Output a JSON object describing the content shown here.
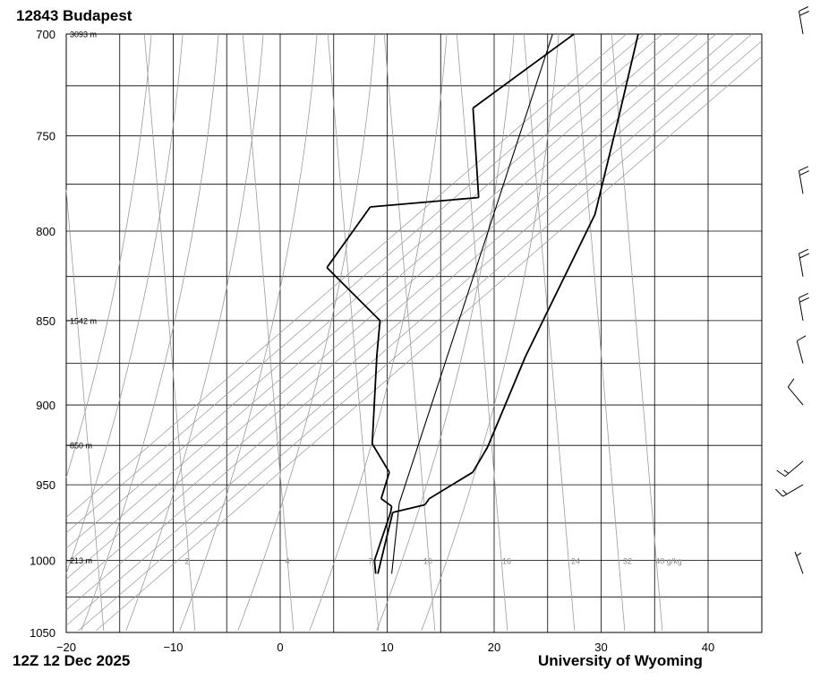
{
  "header": {
    "station_title": "12843  Budapest"
  },
  "footer": {
    "left_text": "12Z 12 Dec 2025",
    "right_text": "University of Wyoming"
  },
  "chart_data": {
    "type": "line",
    "title": "12843  Budapest",
    "subtitle": "12Z 12 Dec 2025",
    "credit": "University of Wyoming",
    "xlabel": "",
    "ylabel": "",
    "x_ticks": [
      -20,
      -10,
      0,
      10,
      20,
      30,
      40
    ],
    "y_ticks": [
      700,
      750,
      800,
      850,
      900,
      950,
      1000,
      1050
    ],
    "xlim": [
      -20,
      45
    ],
    "ylim": [
      1050,
      700
    ],
    "y_scale": "log-pressure",
    "grid": true,
    "height_labels": [
      {
        "p": 700,
        "label": "3093 m"
      },
      {
        "p": 850,
        "label": "1542 m"
      },
      {
        "p": 925,
        "label": "850 m"
      },
      {
        "p": 1000,
        "label": "213 m"
      }
    ],
    "mixing_ratio_labels": [
      "2",
      "4",
      "7",
      "10",
      "16",
      "24",
      "32",
      "40 g/kg"
    ],
    "series": [
      {
        "role": "temperature",
        "points": [
          [
            5.2,
            1009
          ],
          [
            2.5,
            968
          ],
          [
            5.0,
            963
          ],
          [
            5.0,
            959
          ],
          [
            7.3,
            942
          ],
          [
            7.0,
            926
          ],
          [
            4.5,
            871
          ],
          [
            1.5,
            791
          ],
          [
            -3.0,
            738
          ],
          [
            -6.5,
            700
          ]
        ]
      },
      {
        "role": "dewpoint",
        "points": [
          [
            5.0,
            1009
          ],
          [
            4.0,
            1000
          ],
          [
            2.3,
            968
          ],
          [
            2.0,
            964
          ],
          [
            0.5,
            959
          ],
          [
            -0.5,
            942
          ],
          [
            -4.0,
            924
          ],
          [
            -9.5,
            870
          ],
          [
            -11.5,
            850
          ],
          [
            -20.0,
            820
          ],
          [
            -20.0,
            787
          ],
          [
            -10.5,
            782
          ],
          [
            -17.0,
            736
          ],
          [
            -12.5,
            700
          ]
        ]
      },
      {
        "role": "parcel",
        "points": [
          [
            6.5,
            1009
          ],
          [
            2.5,
            962
          ],
          [
            -14.5,
            700
          ]
        ]
      }
    ],
    "wind_barbs": [
      {
        "p": 1009,
        "direction": 340,
        "speed_kt": 5
      },
      {
        "p": 950,
        "direction": 240,
        "speed_kt": 15
      },
      {
        "p": 935,
        "direction": 230,
        "speed_kt": 15
      },
      {
        "p": 900,
        "direction": 320,
        "speed_kt": 10
      },
      {
        "p": 875,
        "direction": 345,
        "speed_kt": 10
      },
      {
        "p": 850,
        "direction": 350,
        "speed_kt": 20
      },
      {
        "p": 825,
        "direction": 350,
        "speed_kt": 20
      },
      {
        "p": 780,
        "direction": 350,
        "speed_kt": 20
      },
      {
        "p": 700,
        "direction": 350,
        "speed_kt": 20
      }
    ]
  }
}
